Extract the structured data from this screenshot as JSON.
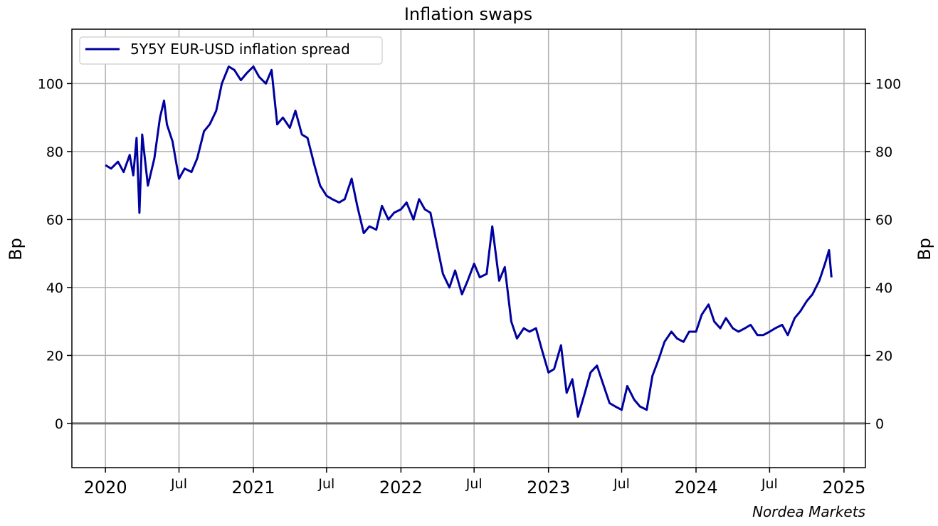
{
  "chart_data": {
    "type": "line",
    "title": "Inflation swaps",
    "ylabel": "Bp",
    "ylabel_right": "Bp",
    "source": "Nordea Markets",
    "ylim": [
      -13,
      116
    ],
    "xlim": [
      "2019-10-10",
      "2025-02-23"
    ],
    "yticks": [
      0,
      20,
      40,
      60,
      80,
      100
    ],
    "yticklabels": [
      "0",
      "20",
      "40",
      "60",
      "80",
      "100"
    ],
    "xticks": [
      {
        "date": "2020-01-01",
        "label": "2020",
        "major": true
      },
      {
        "date": "2020-07-01",
        "label": "Jul",
        "major": false
      },
      {
        "date": "2021-01-01",
        "label": "2021",
        "major": true
      },
      {
        "date": "2021-07-01",
        "label": "Jul",
        "major": false
      },
      {
        "date": "2022-01-01",
        "label": "2022",
        "major": true
      },
      {
        "date": "2022-07-01",
        "label": "Jul",
        "major": false
      },
      {
        "date": "2023-01-01",
        "label": "2023",
        "major": true
      },
      {
        "date": "2023-07-01",
        "label": "Jul",
        "major": false
      },
      {
        "date": "2024-01-01",
        "label": "2024",
        "major": true
      },
      {
        "date": "2024-07-01",
        "label": "Jul",
        "major": false
      },
      {
        "date": "2025-01-01",
        "label": "2025",
        "major": true
      }
    ],
    "grid": true,
    "zero_line": true,
    "legend_position": "upper-left",
    "series": [
      {
        "name": "5Y5Y EUR-USD inflation spread",
        "color": "#0000a0",
        "x": [
          "2020-01-01",
          "2020-01-15",
          "2020-02-01",
          "2020-02-15",
          "2020-03-01",
          "2020-03-10",
          "2020-03-18",
          "2020-03-25",
          "2020-04-01",
          "2020-04-15",
          "2020-05-01",
          "2020-05-15",
          "2020-05-25",
          "2020-06-01",
          "2020-06-15",
          "2020-07-01",
          "2020-07-15",
          "2020-08-01",
          "2020-08-15",
          "2020-09-01",
          "2020-09-15",
          "2020-10-01",
          "2020-10-15",
          "2020-11-01",
          "2020-11-15",
          "2020-12-01",
          "2020-12-15",
          "2021-01-01",
          "2021-01-15",
          "2021-02-01",
          "2021-02-15",
          "2021-03-01",
          "2021-03-15",
          "2021-04-01",
          "2021-04-15",
          "2021-05-01",
          "2021-05-15",
          "2021-06-01",
          "2021-06-15",
          "2021-07-01",
          "2021-07-15",
          "2021-08-01",
          "2021-08-15",
          "2021-09-01",
          "2021-09-15",
          "2021-10-01",
          "2021-10-15",
          "2021-11-01",
          "2021-11-15",
          "2021-12-01",
          "2021-12-15",
          "2022-01-01",
          "2022-01-15",
          "2022-02-01",
          "2022-02-15",
          "2022-03-01",
          "2022-03-15",
          "2022-04-01",
          "2022-04-15",
          "2022-05-01",
          "2022-05-15",
          "2022-06-01",
          "2022-06-15",
          "2022-07-01",
          "2022-07-15",
          "2022-08-01",
          "2022-08-15",
          "2022-09-01",
          "2022-09-15",
          "2022-10-01",
          "2022-10-15",
          "2022-11-01",
          "2022-11-15",
          "2022-12-01",
          "2022-12-15",
          "2023-01-01",
          "2023-01-15",
          "2023-02-01",
          "2023-02-15",
          "2023-03-01",
          "2023-03-15",
          "2023-04-01",
          "2023-04-15",
          "2023-05-01",
          "2023-05-15",
          "2023-06-01",
          "2023-06-15",
          "2023-07-01",
          "2023-07-15",
          "2023-08-01",
          "2023-08-15",
          "2023-09-01",
          "2023-09-15",
          "2023-10-01",
          "2023-10-15",
          "2023-11-01",
          "2023-11-15",
          "2023-12-01",
          "2023-12-15",
          "2024-01-01",
          "2024-01-15",
          "2024-02-01",
          "2024-02-15",
          "2024-03-01",
          "2024-03-15",
          "2024-04-01",
          "2024-04-15",
          "2024-05-01",
          "2024-05-15",
          "2024-06-01",
          "2024-06-15",
          "2024-07-01",
          "2024-07-15",
          "2024-08-01",
          "2024-08-15",
          "2024-09-01",
          "2024-09-15",
          "2024-10-01",
          "2024-10-15",
          "2024-11-01",
          "2024-11-15",
          "2024-11-25",
          "2024-12-01"
        ],
        "values": [
          76,
          75,
          77,
          74,
          79,
          73,
          84,
          62,
          85,
          70,
          78,
          90,
          95,
          88,
          83,
          72,
          75,
          74,
          78,
          86,
          88,
          92,
          100,
          105,
          104,
          101,
          103,
          105,
          102,
          100,
          104,
          88,
          90,
          87,
          92,
          85,
          84,
          76,
          70,
          67,
          66,
          65,
          66,
          72,
          64,
          56,
          58,
          57,
          64,
          60,
          62,
          63,
          65,
          60,
          66,
          63,
          62,
          52,
          44,
          40,
          45,
          38,
          42,
          47,
          43,
          44,
          58,
          42,
          46,
          30,
          25,
          28,
          27,
          28,
          22,
          15,
          16,
          23,
          9,
          13,
          2,
          9,
          15,
          17,
          12,
          6,
          5,
          4,
          11,
          7,
          5,
          4,
          14,
          19,
          24,
          27,
          25,
          24,
          27,
          27,
          32,
          35,
          30,
          28,
          31,
          28,
          27,
          28,
          29,
          26,
          26,
          27,
          28,
          29,
          26,
          31,
          33,
          36,
          38,
          42,
          47,
          51,
          43
        ]
      }
    ]
  }
}
